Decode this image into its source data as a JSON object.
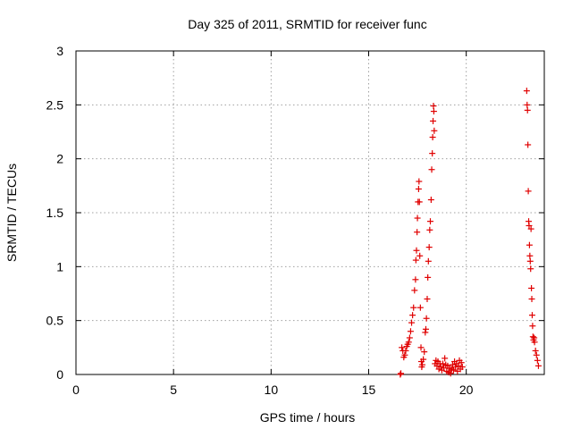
{
  "chart_data": {
    "type": "scatter",
    "title": "Day 325 of 2011, SRMTID for receiver func",
    "xlabel": "GPS time / hours",
    "ylabel": "SRMTID / TECUs",
    "xlim": [
      0,
      24
    ],
    "ylim": [
      0,
      3
    ],
    "x_ticks": [
      0,
      5,
      10,
      15,
      20
    ],
    "y_ticks": [
      0,
      0.5,
      1,
      1.5,
      2,
      2.5,
      3
    ],
    "x_tick_labels": [
      "0",
      "5",
      "10",
      "15",
      "20"
    ],
    "y_tick_labels": [
      "0",
      "0.5",
      "1",
      "1.5",
      "2",
      "2.5",
      "3"
    ],
    "grid": true,
    "marker": "plus",
    "color": "#e00000",
    "series": [
      {
        "name": "",
        "points": [
          [
            16.62,
            0.0
          ],
          [
            16.65,
            0.01
          ],
          [
            16.7,
            0.25
          ],
          [
            16.75,
            0.22
          ],
          [
            16.8,
            0.16
          ],
          [
            16.85,
            0.18
          ],
          [
            16.9,
            0.22
          ],
          [
            16.95,
            0.26
          ],
          [
            17.0,
            0.28
          ],
          [
            17.05,
            0.3
          ],
          [
            17.1,
            0.34
          ],
          [
            17.15,
            0.4
          ],
          [
            17.2,
            0.48
          ],
          [
            17.25,
            0.55
          ],
          [
            17.3,
            0.62
          ],
          [
            17.35,
            0.78
          ],
          [
            17.4,
            0.88
          ],
          [
            17.42,
            1.06
          ],
          [
            17.45,
            1.15
          ],
          [
            17.48,
            1.32
          ],
          [
            17.5,
            1.45
          ],
          [
            17.53,
            1.6
          ],
          [
            17.56,
            1.72
          ],
          [
            17.58,
            1.79
          ],
          [
            17.6,
            1.6
          ],
          [
            17.62,
            1.1
          ],
          [
            17.65,
            0.62
          ],
          [
            17.68,
            0.25
          ],
          [
            17.7,
            0.12
          ],
          [
            17.72,
            0.07
          ],
          [
            17.75,
            0.09
          ],
          [
            17.8,
            0.14
          ],
          [
            17.85,
            0.21
          ],
          [
            17.9,
            0.39
          ],
          [
            17.93,
            0.42
          ],
          [
            17.96,
            0.52
          ],
          [
            18.0,
            0.7
          ],
          [
            18.03,
            0.9
          ],
          [
            18.06,
            1.05
          ],
          [
            18.1,
            1.18
          ],
          [
            18.13,
            1.34
          ],
          [
            18.16,
            1.42
          ],
          [
            18.2,
            1.62
          ],
          [
            18.23,
            1.9
          ],
          [
            18.26,
            2.05
          ],
          [
            18.28,
            2.2
          ],
          [
            18.3,
            2.35
          ],
          [
            18.32,
            2.49
          ],
          [
            18.34,
            2.44
          ],
          [
            18.36,
            2.26
          ],
          [
            18.4,
            0.1
          ],
          [
            18.45,
            0.13
          ],
          [
            18.5,
            0.08
          ],
          [
            18.55,
            0.12
          ],
          [
            18.6,
            0.05
          ],
          [
            18.65,
            0.1
          ],
          [
            18.7,
            0.07
          ],
          [
            18.75,
            0.04
          ],
          [
            18.8,
            0.1
          ],
          [
            18.85,
            0.06
          ],
          [
            18.9,
            0.15
          ],
          [
            18.95,
            0.09
          ],
          [
            19.0,
            0.03
          ],
          [
            19.05,
            0.08
          ],
          [
            19.1,
            0.02
          ],
          [
            19.15,
            0.06
          ],
          [
            19.2,
            0.01
          ],
          [
            19.25,
            0.05
          ],
          [
            19.3,
            0.09
          ],
          [
            19.35,
            0.04
          ],
          [
            19.4,
            0.12
          ],
          [
            19.45,
            0.07
          ],
          [
            19.5,
            0.1
          ],
          [
            19.55,
            0.03
          ],
          [
            19.6,
            0.08
          ],
          [
            19.65,
            0.13
          ],
          [
            19.7,
            0.05
          ],
          [
            19.75,
            0.11
          ],
          [
            19.8,
            0.07
          ],
          [
            23.1,
            2.63
          ],
          [
            23.12,
            2.5
          ],
          [
            23.14,
            2.45
          ],
          [
            23.16,
            2.13
          ],
          [
            23.18,
            1.7
          ],
          [
            23.2,
            1.42
          ],
          [
            23.22,
            1.38
          ],
          [
            23.24,
            1.2
          ],
          [
            23.26,
            1.1
          ],
          [
            23.28,
            1.05
          ],
          [
            23.3,
            0.98
          ],
          [
            23.32,
            1.35
          ],
          [
            23.34,
            0.8
          ],
          [
            23.36,
            0.7
          ],
          [
            23.38,
            0.55
          ],
          [
            23.4,
            0.45
          ],
          [
            23.42,
            0.35
          ],
          [
            23.45,
            0.32
          ],
          [
            23.48,
            0.34
          ],
          [
            23.5,
            0.3
          ],
          [
            23.55,
            0.22
          ],
          [
            23.6,
            0.18
          ],
          [
            23.65,
            0.13
          ],
          [
            23.7,
            0.08
          ]
        ]
      }
    ]
  }
}
